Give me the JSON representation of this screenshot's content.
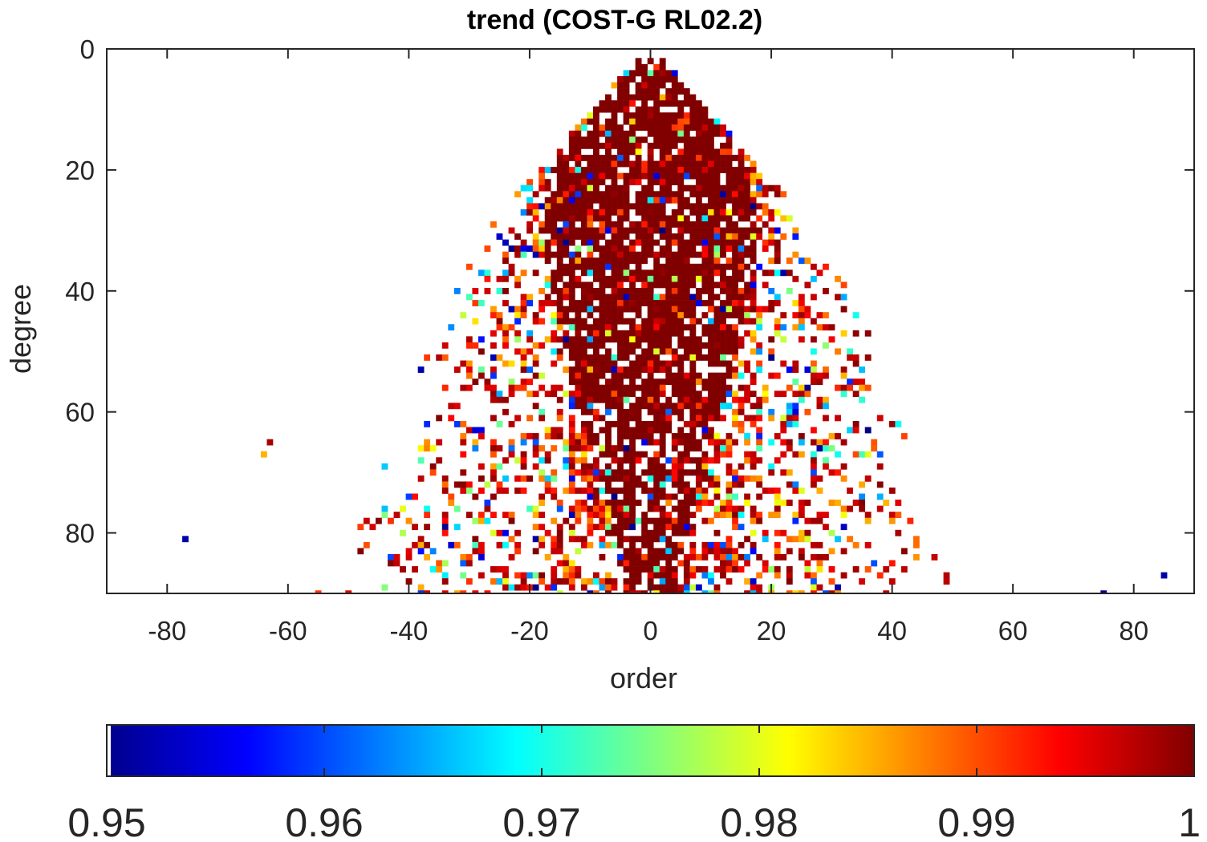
{
  "chart_data": {
    "type": "heatmap",
    "title": "trend (COST-G RL02.2)",
    "xlabel": "order",
    "ylabel": "degree",
    "xlim": [
      -90,
      90
    ],
    "ylim": [
      0,
      90
    ],
    "y_reversed": true,
    "x_ticks": [
      -80,
      -60,
      -40,
      -20,
      0,
      20,
      40,
      60,
      80
    ],
    "x_tick_labels": [
      "-80",
      "-60",
      "-40",
      "-20",
      "0",
      "20",
      "40",
      "60",
      "80"
    ],
    "y_ticks": [
      0,
      20,
      40,
      60,
      80
    ],
    "y_tick_labels": [
      "0",
      "20",
      "40",
      "60",
      "80"
    ],
    "colormap": "jet",
    "color_range": [
      0.95,
      1.0
    ],
    "colorbar": {
      "location": "bottom",
      "ticks": [
        0.95,
        0.96,
        0.97,
        0.98,
        0.99,
        1.0
      ],
      "tick_labels": [
        "0.95",
        "0.96",
        "0.97",
        "0.98",
        "0.99",
        "1"
      ]
    },
    "cells_description": "Spherical-harmonic coefficients (degree n, order m); value = correlation of trend. Triangular region |m| <= n, densely saturated (~1.0, dark red) near low degrees and small orders, sparse scattered lower values at higher degrees / orders.",
    "dense_envelope": [
      {
        "degree": 2,
        "max_abs_order": 2
      },
      {
        "degree": 10,
        "max_abs_order": 9
      },
      {
        "degree": 20,
        "max_abs_order": 18
      },
      {
        "degree": 30,
        "max_abs_order": 27
      },
      {
        "degree": 40,
        "max_abs_order": 33
      },
      {
        "degree": 50,
        "max_abs_order": 37
      },
      {
        "degree": 60,
        "max_abs_order": 40
      },
      {
        "degree": 70,
        "max_abs_order": 44
      },
      {
        "degree": 80,
        "max_abs_order": 48
      },
      {
        "degree": 90,
        "max_abs_order": 50
      }
    ],
    "core_envelope": [
      {
        "degree": 2,
        "max_abs_order": 2
      },
      {
        "degree": 10,
        "max_abs_order": 9
      },
      {
        "degree": 20,
        "max_abs_order": 16
      },
      {
        "degree": 30,
        "max_abs_order": 18
      },
      {
        "degree": 45,
        "max_abs_order": 15
      },
      {
        "degree": 60,
        "max_abs_order": 12
      },
      {
        "degree": 70,
        "max_abs_order": 8
      },
      {
        "degree": 80,
        "max_abs_order": 6
      },
      {
        "degree": 90,
        "max_abs_order": 4
      }
    ],
    "outlier_cells": [
      {
        "order": -77,
        "degree": 81,
        "value": 0.952
      },
      {
        "order": 85,
        "degree": 87,
        "value": 0.952
      },
      {
        "order": 75,
        "degree": 90,
        "value": 0.951
      },
      {
        "order": -63,
        "degree": 65,
        "value": 0.998
      },
      {
        "order": -64,
        "degree": 67,
        "value": 0.985
      },
      {
        "order": -55,
        "degree": 90,
        "value": 0.991
      }
    ]
  }
}
